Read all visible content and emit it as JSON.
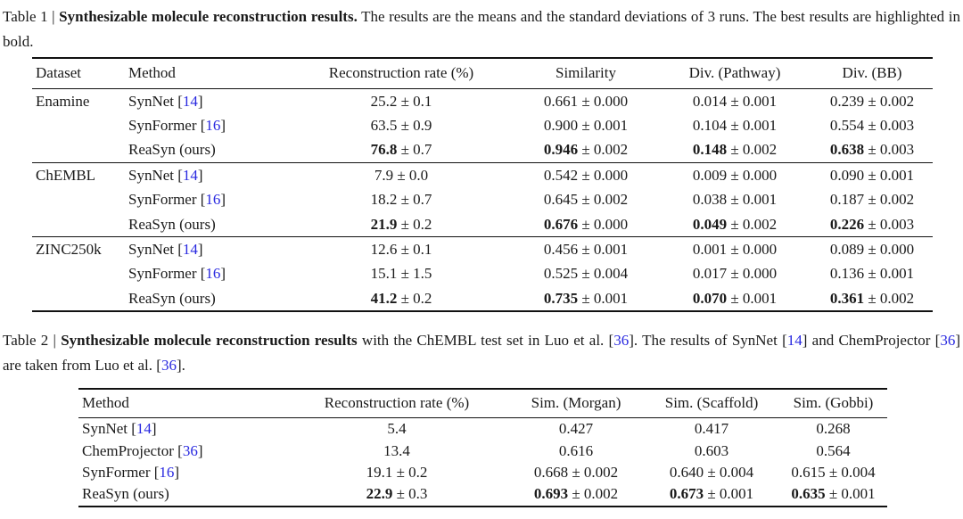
{
  "colors": {
    "text": "#1a1a1a",
    "cite": "#2929e0",
    "rule": "#111111",
    "background": "#ffffff"
  },
  "caption1": {
    "segments": [
      {
        "t": "Table 1 | "
      },
      {
        "t": "Synthesizable molecule reconstruction results.",
        "c": "b"
      },
      {
        "t": " The results are the means and the standard deviations of 3 runs. The best results are highlighted in bold."
      }
    ]
  },
  "table1": {
    "headers": [
      "Dataset",
      "Method",
      "Reconstruction rate (%)",
      "Similarity",
      "Div. (Pathway)",
      "Div. (BB)"
    ],
    "groups": [
      {
        "dataset": "Enamine",
        "rows": [
          {
            "method": [
              {
                "t": "SynNet ["
              },
              {
                "t": "14",
                "c": "cite"
              },
              {
                "t": "]"
              }
            ],
            "cells": [
              [
                {
                  "t": "25.2"
                },
                {
                  "t": " ± 0.1"
                }
              ],
              [
                {
                  "t": "0.661"
                },
                {
                  "t": " ± 0.000"
                }
              ],
              [
                {
                  "t": "0.014"
                },
                {
                  "t": " ± 0.001"
                }
              ],
              [
                {
                  "t": "0.239"
                },
                {
                  "t": " ± 0.002"
                }
              ]
            ]
          },
          {
            "method": [
              {
                "t": "SynFormer ["
              },
              {
                "t": "16",
                "c": "cite"
              },
              {
                "t": "]"
              }
            ],
            "cells": [
              [
                {
                  "t": "63.5"
                },
                {
                  "t": " ± 0.9"
                }
              ],
              [
                {
                  "t": "0.900"
                },
                {
                  "t": " ± 0.001"
                }
              ],
              [
                {
                  "t": "0.104"
                },
                {
                  "t": " ± 0.001"
                }
              ],
              [
                {
                  "t": "0.554"
                },
                {
                  "t": " ± 0.003"
                }
              ]
            ]
          },
          {
            "method": [
              {
                "t": "ReaSyn (ours)"
              }
            ],
            "cells": [
              [
                {
                  "t": "76.8",
                  "c": "b"
                },
                {
                  "t": " ± 0.7"
                }
              ],
              [
                {
                  "t": "0.946",
                  "c": "b"
                },
                {
                  "t": " ± 0.002"
                }
              ],
              [
                {
                  "t": "0.148",
                  "c": "b"
                },
                {
                  "t": " ± 0.002"
                }
              ],
              [
                {
                  "t": "0.638",
                  "c": "b"
                },
                {
                  "t": " ± 0.003"
                }
              ]
            ]
          }
        ]
      },
      {
        "dataset": "ChEMBL",
        "rows": [
          {
            "method": [
              {
                "t": "SynNet ["
              },
              {
                "t": "14",
                "c": "cite"
              },
              {
                "t": "]"
              }
            ],
            "cells": [
              [
                {
                  "t": "7.9"
                },
                {
                  "t": " ± 0.0"
                }
              ],
              [
                {
                  "t": "0.542"
                },
                {
                  "t": " ± 0.000"
                }
              ],
              [
                {
                  "t": "0.009"
                },
                {
                  "t": " ± 0.000"
                }
              ],
              [
                {
                  "t": "0.090"
                },
                {
                  "t": " ± 0.001"
                }
              ]
            ]
          },
          {
            "method": [
              {
                "t": "SynFormer ["
              },
              {
                "t": "16",
                "c": "cite"
              },
              {
                "t": "]"
              }
            ],
            "cells": [
              [
                {
                  "t": "18.2"
                },
                {
                  "t": " ± 0.7"
                }
              ],
              [
                {
                  "t": "0.645"
                },
                {
                  "t": " ± 0.002"
                }
              ],
              [
                {
                  "t": "0.038"
                },
                {
                  "t": " ± 0.001"
                }
              ],
              [
                {
                  "t": "0.187"
                },
                {
                  "t": " ± 0.002"
                }
              ]
            ]
          },
          {
            "method": [
              {
                "t": "ReaSyn (ours)"
              }
            ],
            "cells": [
              [
                {
                  "t": "21.9",
                  "c": "b"
                },
                {
                  "t": " ± 0.2"
                }
              ],
              [
                {
                  "t": "0.676",
                  "c": "b"
                },
                {
                  "t": " ± 0.000"
                }
              ],
              [
                {
                  "t": "0.049",
                  "c": "b"
                },
                {
                  "t": " ± 0.002"
                }
              ],
              [
                {
                  "t": "0.226",
                  "c": "b"
                },
                {
                  "t": " ± 0.003"
                }
              ]
            ]
          }
        ]
      },
      {
        "dataset": "ZINC250k",
        "rows": [
          {
            "method": [
              {
                "t": "SynNet ["
              },
              {
                "t": "14",
                "c": "cite"
              },
              {
                "t": "]"
              }
            ],
            "cells": [
              [
                {
                  "t": "12.6"
                },
                {
                  "t": " ± 0.1"
                }
              ],
              [
                {
                  "t": "0.456"
                },
                {
                  "t": " ± 0.001"
                }
              ],
              [
                {
                  "t": "0.001"
                },
                {
                  "t": " ± 0.000"
                }
              ],
              [
                {
                  "t": "0.089"
                },
                {
                  "t": " ± 0.000"
                }
              ]
            ]
          },
          {
            "method": [
              {
                "t": "SynFormer ["
              },
              {
                "t": "16",
                "c": "cite"
              },
              {
                "t": "]"
              }
            ],
            "cells": [
              [
                {
                  "t": "15.1"
                },
                {
                  "t": " ± 1.5"
                }
              ],
              [
                {
                  "t": "0.525"
                },
                {
                  "t": " ± 0.004"
                }
              ],
              [
                {
                  "t": "0.017"
                },
                {
                  "t": " ± 0.000"
                }
              ],
              [
                {
                  "t": "0.136"
                },
                {
                  "t": " ± 0.001"
                }
              ]
            ]
          },
          {
            "method": [
              {
                "t": "ReaSyn (ours)"
              }
            ],
            "cells": [
              [
                {
                  "t": "41.2",
                  "c": "b"
                },
                {
                  "t": " ± 0.2"
                }
              ],
              [
                {
                  "t": "0.735",
                  "c": "b"
                },
                {
                  "t": " ± 0.001"
                }
              ],
              [
                {
                  "t": "0.070",
                  "c": "b"
                },
                {
                  "t": " ± 0.001"
                }
              ],
              [
                {
                  "t": "0.361",
                  "c": "b"
                },
                {
                  "t": " ± 0.002"
                }
              ]
            ]
          }
        ]
      }
    ]
  },
  "caption2": {
    "segments": [
      {
        "t": "Table 2 | "
      },
      {
        "t": "Synthesizable molecule reconstruction results",
        "c": "b"
      },
      {
        "t": " with the ChEMBL test set in Luo et al. ["
      },
      {
        "t": "36",
        "c": "cite"
      },
      {
        "t": "]. The results of SynNet ["
      },
      {
        "t": "14",
        "c": "cite"
      },
      {
        "t": "] and ChemProjector ["
      },
      {
        "t": "36",
        "c": "cite"
      },
      {
        "t": "] are taken from Luo et al. ["
      },
      {
        "t": "36",
        "c": "cite"
      },
      {
        "t": "]."
      }
    ]
  },
  "table2": {
    "headers": [
      "Method",
      "Reconstruction rate (%)",
      "Sim. (Morgan)",
      "Sim. (Scaffold)",
      "Sim. (Gobbi)"
    ],
    "rows": [
      {
        "method": [
          {
            "t": "SynNet ["
          },
          {
            "t": "14",
            "c": "cite"
          },
          {
            "t": "]"
          }
        ],
        "cells": [
          [
            {
              "t": "5.4"
            }
          ],
          [
            {
              "t": "0.427"
            }
          ],
          [
            {
              "t": "0.417"
            }
          ],
          [
            {
              "t": "0.268"
            }
          ]
        ]
      },
      {
        "method": [
          {
            "t": "ChemProjector ["
          },
          {
            "t": "36",
            "c": "cite"
          },
          {
            "t": "]"
          }
        ],
        "cells": [
          [
            {
              "t": "13.4"
            }
          ],
          [
            {
              "t": "0.616"
            }
          ],
          [
            {
              "t": "0.603"
            }
          ],
          [
            {
              "t": "0.564"
            }
          ]
        ]
      },
      {
        "method": [
          {
            "t": "SynFormer ["
          },
          {
            "t": "16",
            "c": "cite"
          },
          {
            "t": "]"
          }
        ],
        "cells": [
          [
            {
              "t": "19.1"
            },
            {
              "t": " ± 0.2"
            }
          ],
          [
            {
              "t": "0.668"
            },
            {
              "t": " ± 0.002"
            }
          ],
          [
            {
              "t": "0.640"
            },
            {
              "t": " ± 0.004"
            }
          ],
          [
            {
              "t": "0.615"
            },
            {
              "t": " ± 0.004"
            }
          ]
        ]
      },
      {
        "method": [
          {
            "t": "ReaSyn (ours)"
          }
        ],
        "cells": [
          [
            {
              "t": "22.9",
              "c": "b"
            },
            {
              "t": " ± 0.3"
            }
          ],
          [
            {
              "t": "0.693",
              "c": "b"
            },
            {
              "t": " ± 0.002"
            }
          ],
          [
            {
              "t": "0.673",
              "c": "b"
            },
            {
              "t": " ± 0.001"
            }
          ],
          [
            {
              "t": "0.635",
              "c": "b"
            },
            {
              "t": " ± 0.001"
            }
          ]
        ]
      }
    ]
  }
}
